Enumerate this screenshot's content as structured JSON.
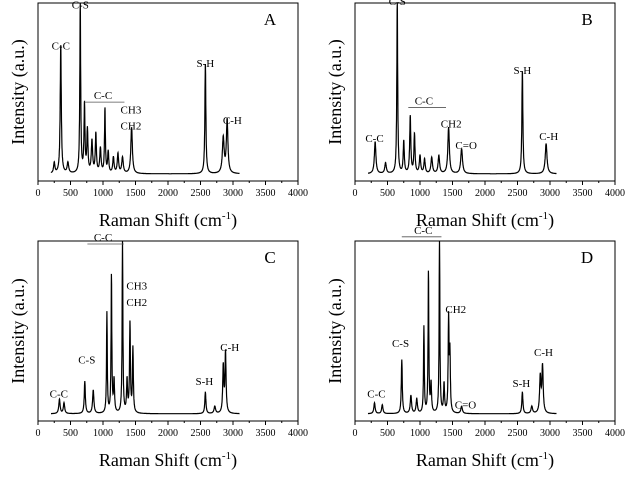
{
  "chart_data": [
    {
      "type": "line",
      "panel_letter": "A",
      "xlabel": "Raman Shift (cm",
      "xlabel_sup": "-1",
      "xlabel_close": ")",
      "ylabel": "Intensity (a.u.)",
      "xlim": [
        0,
        4000
      ],
      "ylim": [
        0,
        100
      ],
      "grid": false,
      "x_ticks": [
        "0",
        "500",
        "1000",
        "1500",
        "2000",
        "2500",
        "3000",
        "3500",
        "4000"
      ],
      "baseline": 4,
      "peaks": [
        {
          "x": 250,
          "h": 6,
          "w": 12
        },
        {
          "x": 350,
          "h": 72,
          "w": 10
        },
        {
          "x": 460,
          "h": 6,
          "w": 14
        },
        {
          "x": 650,
          "h": 95,
          "w": 8
        },
        {
          "x": 715,
          "h": 38,
          "w": 9
        },
        {
          "x": 760,
          "h": 24,
          "w": 10
        },
        {
          "x": 830,
          "h": 18,
          "w": 12
        },
        {
          "x": 890,
          "h": 22,
          "w": 10
        },
        {
          "x": 960,
          "h": 14,
          "w": 12
        },
        {
          "x": 1030,
          "h": 36,
          "w": 8
        },
        {
          "x": 1080,
          "h": 12,
          "w": 10
        },
        {
          "x": 1160,
          "h": 9,
          "w": 12
        },
        {
          "x": 1230,
          "h": 11,
          "w": 12
        },
        {
          "x": 1300,
          "h": 9,
          "w": 14
        },
        {
          "x": 1440,
          "h": 26,
          "w": 14
        },
        {
          "x": 2575,
          "h": 62,
          "w": 9
        },
        {
          "x": 2850,
          "h": 20,
          "w": 16
        },
        {
          "x": 2910,
          "h": 30,
          "w": 14
        }
      ],
      "annotations": [
        {
          "text": "C-S",
          "x": 650,
          "y": 97
        },
        {
          "text": "C-C",
          "x": 350,
          "y": 74
        },
        {
          "text": "C-C",
          "x": 1000,
          "y": 46,
          "bracket": [
            720,
            1330
          ]
        },
        {
          "text": "CH3",
          "x": 1430,
          "y": 38
        },
        {
          "text": "CH2",
          "x": 1430,
          "y": 29
        },
        {
          "text": "S-H",
          "x": 2575,
          "y": 64
        },
        {
          "text": "C-H",
          "x": 2990,
          "y": 32
        }
      ]
    },
    {
      "type": "line",
      "panel_letter": "B",
      "xlabel": "Raman Shift (cm",
      "xlabel_sup": "-1",
      "xlabel_close": ")",
      "ylabel": "Intensity (a.u.)",
      "xlim": [
        0,
        4000
      ],
      "ylim": [
        0,
        100
      ],
      "grid": false,
      "x_ticks": [
        "0",
        "500",
        "1000",
        "1500",
        "2000",
        "2500",
        "3000",
        "3500",
        "4000"
      ],
      "baseline": 4,
      "peaks": [
        {
          "x": 310,
          "h": 18,
          "w": 14
        },
        {
          "x": 470,
          "h": 6,
          "w": 14
        },
        {
          "x": 650,
          "h": 97,
          "w": 8
        },
        {
          "x": 750,
          "h": 18,
          "w": 10
        },
        {
          "x": 850,
          "h": 32,
          "w": 10
        },
        {
          "x": 915,
          "h": 22,
          "w": 10
        },
        {
          "x": 1000,
          "h": 10,
          "w": 12
        },
        {
          "x": 1070,
          "h": 8,
          "w": 12
        },
        {
          "x": 1180,
          "h": 9,
          "w": 14
        },
        {
          "x": 1290,
          "h": 10,
          "w": 14
        },
        {
          "x": 1440,
          "h": 26,
          "w": 14
        },
        {
          "x": 1640,
          "h": 14,
          "w": 16
        },
        {
          "x": 2575,
          "h": 58,
          "w": 9
        },
        {
          "x": 2940,
          "h": 17,
          "w": 16
        }
      ],
      "annotations": [
        {
          "text": "C-S",
          "x": 650,
          "y": 99
        },
        {
          "text": "C-C",
          "x": 300,
          "y": 22
        },
        {
          "text": "C-C",
          "x": 1060,
          "y": 43,
          "bracket": [
            820,
            1400
          ]
        },
        {
          "text": "CH2",
          "x": 1480,
          "y": 30
        },
        {
          "text": "C=O",
          "x": 1710,
          "y": 18
        },
        {
          "text": "S-H",
          "x": 2575,
          "y": 60
        },
        {
          "text": "C-H",
          "x": 2980,
          "y": 23
        }
      ]
    },
    {
      "type": "line",
      "panel_letter": "C",
      "xlabel": "Raman Shift (cm",
      "xlabel_sup": "-1",
      "xlabel_close": ")",
      "ylabel": "Intensity (a.u.)",
      "xlim": [
        0,
        4000
      ],
      "ylim": [
        0,
        100
      ],
      "grid": false,
      "x_ticks": [
        "0",
        "500",
        "1000",
        "1500",
        "2000",
        "2500",
        "3000",
        "3500",
        "4000"
      ],
      "baseline": 4,
      "peaks": [
        {
          "x": 330,
          "h": 8,
          "w": 12
        },
        {
          "x": 400,
          "h": 6,
          "w": 12
        },
        {
          "x": 720,
          "h": 18,
          "w": 10
        },
        {
          "x": 850,
          "h": 13,
          "w": 12
        },
        {
          "x": 1060,
          "h": 56,
          "w": 7
        },
        {
          "x": 1130,
          "h": 76,
          "w": 7
        },
        {
          "x": 1170,
          "h": 18,
          "w": 9
        },
        {
          "x": 1300,
          "h": 96,
          "w": 7
        },
        {
          "x": 1370,
          "h": 18,
          "w": 9
        },
        {
          "x": 1415,
          "h": 50,
          "w": 8
        },
        {
          "x": 1460,
          "h": 36,
          "w": 8
        },
        {
          "x": 2575,
          "h": 12,
          "w": 10
        },
        {
          "x": 2720,
          "h": 4,
          "w": 14
        },
        {
          "x": 2850,
          "h": 26,
          "w": 10
        },
        {
          "x": 2885,
          "h": 34,
          "w": 10
        }
      ],
      "annotations": [
        {
          "text": "C-C",
          "x": 1000,
          "y": 100,
          "bracket": [
            760,
            1320
          ]
        },
        {
          "text": "CH3",
          "x": 1520,
          "y": 73
        },
        {
          "text": "CH2",
          "x": 1520,
          "y": 64
        },
        {
          "text": "C-S",
          "x": 750,
          "y": 32
        },
        {
          "text": "C-C",
          "x": 320,
          "y": 13
        },
        {
          "text": "S-H",
          "x": 2560,
          "y": 20
        },
        {
          "text": "C-H",
          "x": 2950,
          "y": 39
        }
      ]
    },
    {
      "type": "line",
      "panel_letter": "D",
      "xlabel": "Raman Shift (cm",
      "xlabel_sup": "-1",
      "xlabel_close": ")",
      "ylabel": "Intensity (a.u.)",
      "xlim": [
        0,
        4000
      ],
      "ylim": [
        0,
        100
      ],
      "grid": false,
      "x_ticks": [
        "0",
        "500",
        "1000",
        "1500",
        "2000",
        "2500",
        "3000",
        "3500",
        "4000"
      ],
      "baseline": 4,
      "peaks": [
        {
          "x": 300,
          "h": 6,
          "w": 12
        },
        {
          "x": 420,
          "h": 5,
          "w": 12
        },
        {
          "x": 720,
          "h": 30,
          "w": 9
        },
        {
          "x": 860,
          "h": 10,
          "w": 12
        },
        {
          "x": 950,
          "h": 8,
          "w": 12
        },
        {
          "x": 1060,
          "h": 48,
          "w": 7
        },
        {
          "x": 1130,
          "h": 78,
          "w": 7
        },
        {
          "x": 1170,
          "h": 16,
          "w": 9
        },
        {
          "x": 1300,
          "h": 98,
          "w": 7
        },
        {
          "x": 1370,
          "h": 16,
          "w": 9
        },
        {
          "x": 1440,
          "h": 52,
          "w": 8
        },
        {
          "x": 1460,
          "h": 32,
          "w": 8
        },
        {
          "x": 1640,
          "h": 4,
          "w": 14
        },
        {
          "x": 2575,
          "h": 12,
          "w": 10
        },
        {
          "x": 2720,
          "h": 4,
          "w": 14
        },
        {
          "x": 2850,
          "h": 20,
          "w": 12
        },
        {
          "x": 2885,
          "h": 26,
          "w": 12
        }
      ],
      "annotations": [
        {
          "text": "C-C",
          "x": 1050,
          "y": 104,
          "bracket": [
            720,
            1330
          ]
        },
        {
          "text": "CH2",
          "x": 1550,
          "y": 60
        },
        {
          "text": "C-S",
          "x": 700,
          "y": 41
        },
        {
          "text": "C-C",
          "x": 330,
          "y": 13
        },
        {
          "text": "C=O",
          "x": 1700,
          "y": 7
        },
        {
          "text": "S-H",
          "x": 2560,
          "y": 19
        },
        {
          "text": "C-H",
          "x": 2900,
          "y": 36
        }
      ]
    }
  ]
}
